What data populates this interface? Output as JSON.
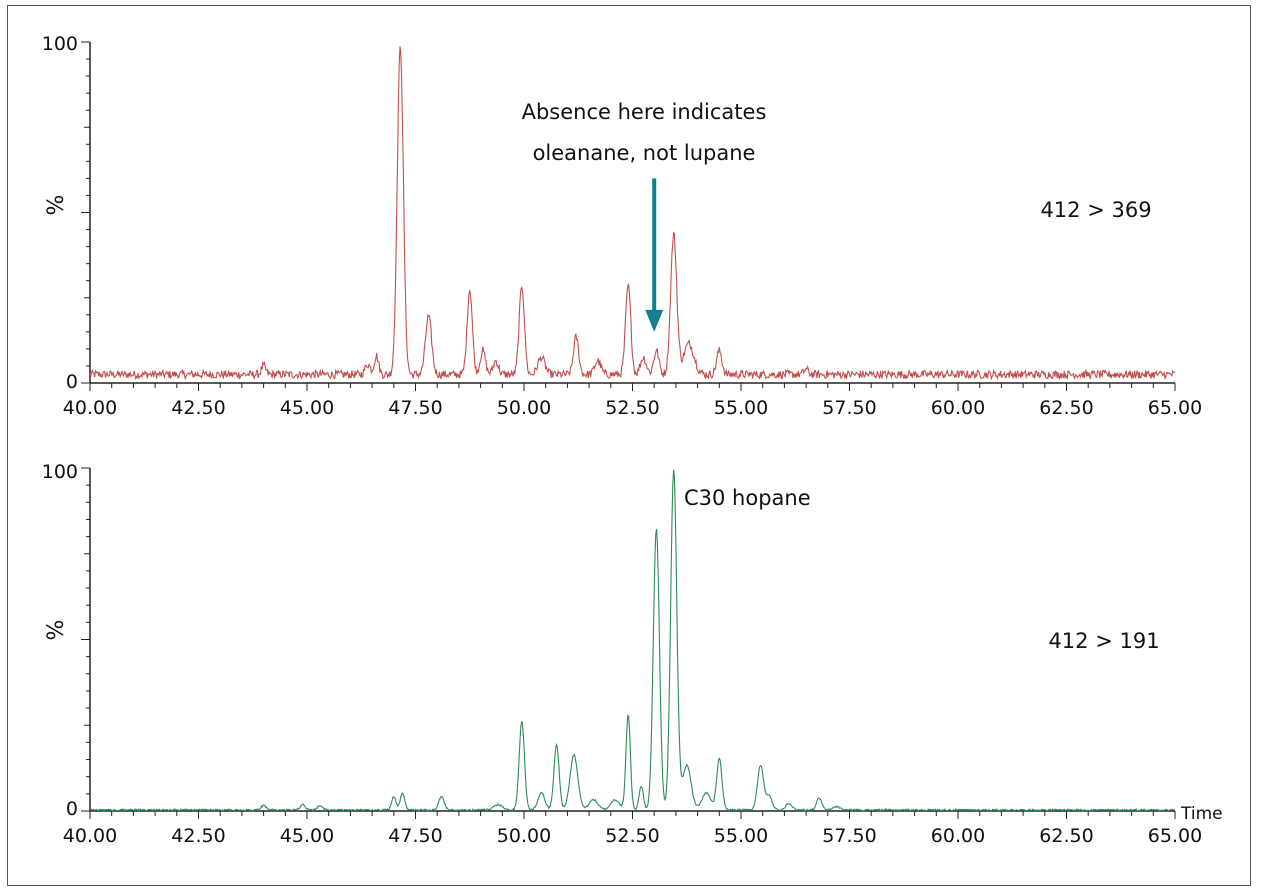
{
  "chart_data": [
    {
      "type": "line",
      "panel": "top",
      "ylabel": "%",
      "xlabel": "",
      "xlim": [
        40,
        65
      ],
      "ylim": [
        0,
        100
      ],
      "x_ticks": [
        "40.00",
        "42.50",
        "45.00",
        "47.50",
        "50.00",
        "52.50",
        "55.00",
        "57.50",
        "60.00",
        "62.50",
        "65.00"
      ],
      "y_ticks": [
        "0",
        "100"
      ],
      "transition_label": "412 > 369",
      "annotation": {
        "line1": "Absence here indicates",
        "line2": "oleanane, not lupane",
        "arrow_x": 53.0,
        "arrow_y_top": 60,
        "arrow_y_bottom": 15,
        "color": "#137f8f"
      },
      "series": [
        {
          "color": "#c0504d",
          "baseline": 2.5,
          "noise": 1.2,
          "peaks": [
            {
              "x": 44.0,
              "y": 2.5,
              "w": 0.05
            },
            {
              "x": 46.4,
              "y": 3.0,
              "w": 0.06
            },
            {
              "x": 46.6,
              "y": 5.5,
              "w": 0.05
            },
            {
              "x": 47.15,
              "y": 96,
              "w": 0.07
            },
            {
              "x": 47.8,
              "y": 17,
              "w": 0.07
            },
            {
              "x": 48.75,
              "y": 25,
              "w": 0.06
            },
            {
              "x": 49.05,
              "y": 7,
              "w": 0.06
            },
            {
              "x": 49.35,
              "y": 4,
              "w": 0.06
            },
            {
              "x": 49.95,
              "y": 26,
              "w": 0.06
            },
            {
              "x": 50.4,
              "y": 5,
              "w": 0.08
            },
            {
              "x": 51.2,
              "y": 11,
              "w": 0.06
            },
            {
              "x": 51.7,
              "y": 4,
              "w": 0.07
            },
            {
              "x": 52.4,
              "y": 26,
              "w": 0.06
            },
            {
              "x": 52.75,
              "y": 5,
              "w": 0.07
            },
            {
              "x": 53.05,
              "y": 7,
              "w": 0.06
            },
            {
              "x": 53.45,
              "y": 41,
              "w": 0.07
            },
            {
              "x": 53.8,
              "y": 9,
              "w": 0.12
            },
            {
              "x": 54.5,
              "y": 7,
              "w": 0.06
            },
            {
              "x": 56.5,
              "y": 1.5,
              "w": 0.05
            }
          ]
        }
      ]
    },
    {
      "type": "line",
      "panel": "bottom",
      "ylabel": "%",
      "xlabel": "Time",
      "xlim": [
        40,
        65
      ],
      "ylim": [
        0,
        100
      ],
      "x_ticks": [
        "40.00",
        "42.50",
        "45.00",
        "47.50",
        "50.00",
        "52.50",
        "55.00",
        "57.50",
        "60.00",
        "62.50",
        "65.00"
      ],
      "y_ticks": [
        "0",
        "100"
      ],
      "transition_label": "412 > 191",
      "peak_label": "C30 hopane",
      "series": [
        {
          "color": "#2e8b57",
          "baseline": 0.3,
          "noise": 0.25,
          "peaks": [
            {
              "x": 44.0,
              "y": 1.3,
              "w": 0.06
            },
            {
              "x": 44.9,
              "y": 1.5,
              "w": 0.06
            },
            {
              "x": 45.3,
              "y": 1.2,
              "w": 0.06
            },
            {
              "x": 47.0,
              "y": 4,
              "w": 0.05
            },
            {
              "x": 47.2,
              "y": 5,
              "w": 0.05
            },
            {
              "x": 48.1,
              "y": 4,
              "w": 0.06
            },
            {
              "x": 49.4,
              "y": 1.5,
              "w": 0.1
            },
            {
              "x": 49.95,
              "y": 26,
              "w": 0.06
            },
            {
              "x": 50.4,
              "y": 5,
              "w": 0.08
            },
            {
              "x": 50.75,
              "y": 19,
              "w": 0.06
            },
            {
              "x": 51.15,
              "y": 16,
              "w": 0.09
            },
            {
              "x": 51.6,
              "y": 3,
              "w": 0.1
            },
            {
              "x": 52.1,
              "y": 3,
              "w": 0.1
            },
            {
              "x": 52.4,
              "y": 28,
              "w": 0.05
            },
            {
              "x": 52.7,
              "y": 7,
              "w": 0.05
            },
            {
              "x": 53.05,
              "y": 82,
              "w": 0.07
            },
            {
              "x": 53.45,
              "y": 99,
              "w": 0.07
            },
            {
              "x": 53.75,
              "y": 13,
              "w": 0.1
            },
            {
              "x": 54.2,
              "y": 5,
              "w": 0.1
            },
            {
              "x": 54.5,
              "y": 15,
              "w": 0.06
            },
            {
              "x": 55.45,
              "y": 13,
              "w": 0.07
            },
            {
              "x": 55.65,
              "y": 4,
              "w": 0.07
            },
            {
              "x": 56.1,
              "y": 2,
              "w": 0.07
            },
            {
              "x": 56.8,
              "y": 3.5,
              "w": 0.06
            },
            {
              "x": 57.2,
              "y": 1,
              "w": 0.08
            }
          ]
        }
      ]
    }
  ]
}
